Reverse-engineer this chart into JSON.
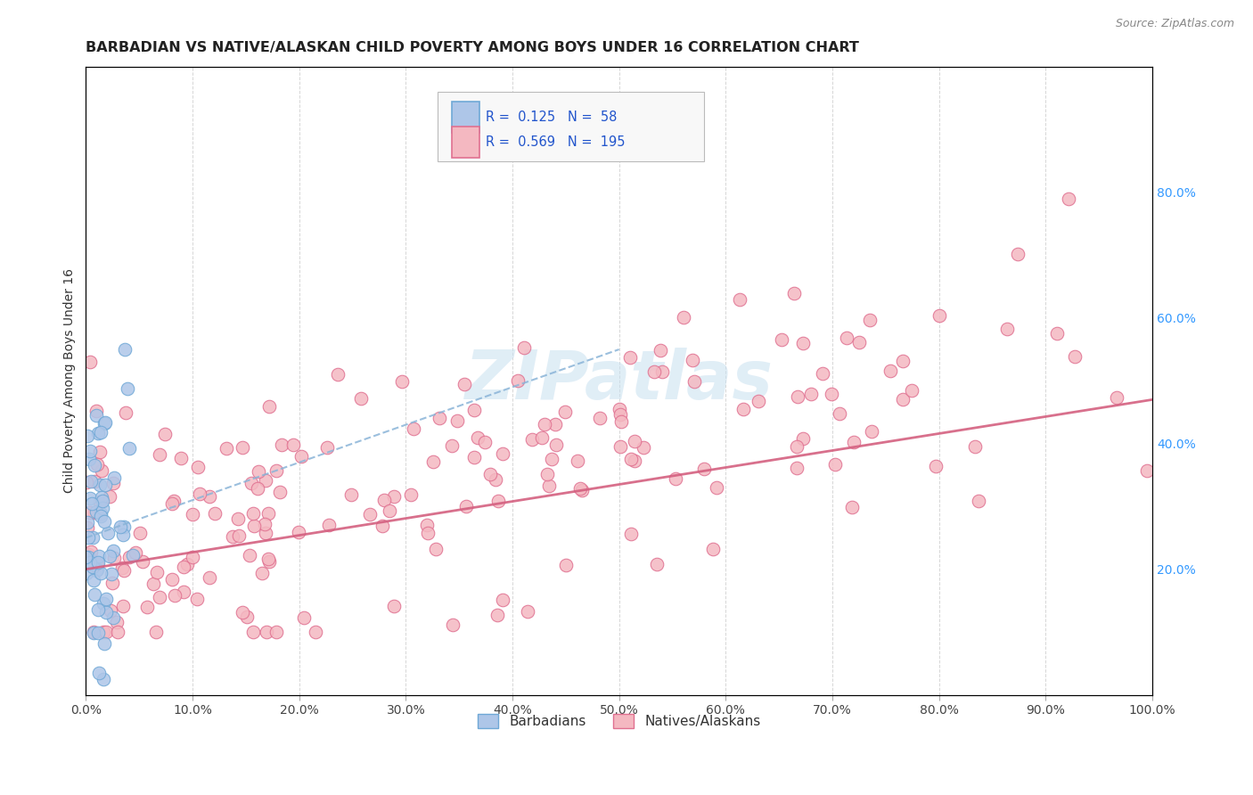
{
  "title": "BARBADIAN VS NATIVE/ALASKAN CHILD POVERTY AMONG BOYS UNDER 16 CORRELATION CHART",
  "source": "Source: ZipAtlas.com",
  "ylabel": "Child Poverty Among Boys Under 16",
  "watermark": "ZIPatlas",
  "barbadian_R": 0.125,
  "barbadian_N": 58,
  "native_R": 0.569,
  "native_N": 195,
  "xlim": [
    0.0,
    1.0
  ],
  "ylim": [
    0.0,
    1.0
  ],
  "xticks": [
    0.0,
    0.1,
    0.2,
    0.3,
    0.4,
    0.5,
    0.6,
    0.7,
    0.8,
    0.9,
    1.0
  ],
  "yticks_right": [
    0.2,
    0.4,
    0.6,
    0.8
  ],
  "barbadian_color": "#aec6e8",
  "native_color": "#f4b8c1",
  "barbadian_edge": "#6fa8d6",
  "native_edge": "#e07090",
  "trend_barbadian_color": "#8ab4d8",
  "trend_native_color": "#d46080",
  "background": "#ffffff",
  "grid_color": "#cccccc",
  "title_color": "#222222",
  "legend_R_color": "#2255cc",
  "right_tick_color": "#3399ff",
  "figsize": [
    14.06,
    8.92
  ],
  "dpi": 100,
  "native_trend_start_x": 0.0,
  "native_trend_start_y": 0.2,
  "native_trend_end_x": 1.0,
  "native_trend_end_y": 0.47,
  "barb_trend_start_x": 0.0,
  "barb_trend_start_y": 0.25,
  "barb_trend_end_x": 1.0,
  "barb_trend_end_y": 0.85
}
